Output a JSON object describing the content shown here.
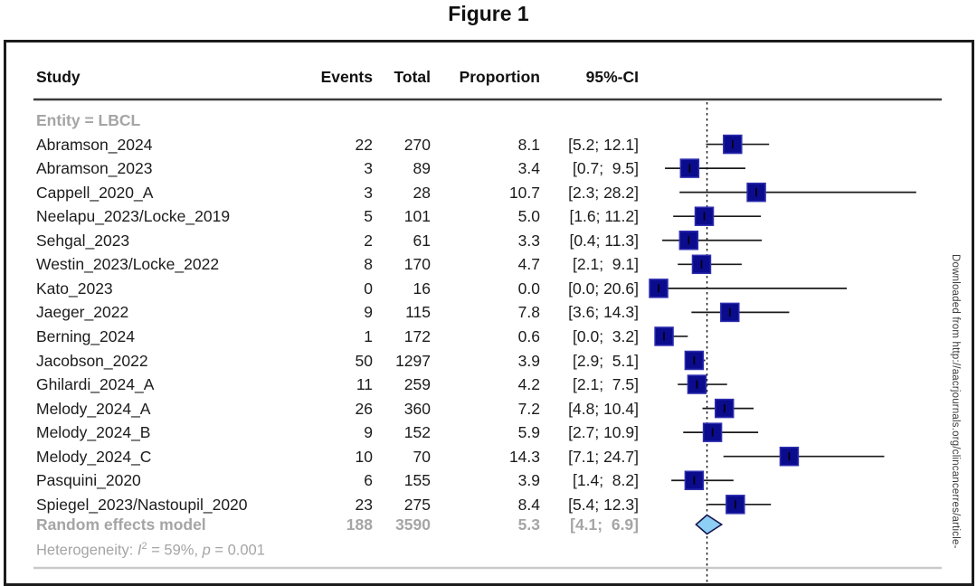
{
  "figure": {
    "label": "Figure 1"
  },
  "watermark": "Downloaded from http://aacrjournals.org/clincancerres/article-",
  "table": {
    "columns": [
      "Study",
      "Events",
      "Total",
      "Proportion",
      "95%-CI"
    ]
  },
  "chart_data": {
    "type": "forest",
    "subgroup_label": "Entity = LBCL",
    "x_reference_line": 5.3,
    "axis": {
      "x_min": 0,
      "x_max": 30,
      "unit": "percent",
      "axis_hidden": true
    },
    "colors": {
      "square_fill": "#0b0b8d",
      "square_stroke": "#2e2eb0",
      "ci_line": "#1a1a1a",
      "reference_line": "#111111",
      "diamond_fill": "#8cceF4",
      "diamond_stroke": "#16164f",
      "subgroup_text": "#a5a5a5",
      "separator_gray": "#c9c9c9"
    },
    "studies": [
      {
        "name": "Abramson_2024",
        "events": 22,
        "total": 270,
        "proportion": 8.1,
        "proportion_label": "8.1",
        "ci_lo": 5.2,
        "ci_hi": 12.1,
        "ci_label": "[5.2; 12.1]"
      },
      {
        "name": "Abramson_2023",
        "events": 3,
        "total": 89,
        "proportion": 3.4,
        "proportion_label": "3.4",
        "ci_lo": 0.7,
        "ci_hi": 9.5,
        "ci_label": "[0.7;  9.5]"
      },
      {
        "name": "Cappell_2020_A",
        "events": 3,
        "total": 28,
        "proportion": 10.7,
        "proportion_label": "10.7",
        "ci_lo": 2.3,
        "ci_hi": 28.2,
        "ci_label": "[2.3; 28.2]"
      },
      {
        "name": "Neelapu_2023/Locke_2019",
        "events": 5,
        "total": 101,
        "proportion": 5.0,
        "proportion_label": "5.0",
        "ci_lo": 1.6,
        "ci_hi": 11.2,
        "ci_label": "[1.6; 11.2]"
      },
      {
        "name": "Sehgal_2023",
        "events": 2,
        "total": 61,
        "proportion": 3.3,
        "proportion_label": "3.3",
        "ci_lo": 0.4,
        "ci_hi": 11.3,
        "ci_label": "[0.4; 11.3]"
      },
      {
        "name": "Westin_2023/Locke_2022",
        "events": 8,
        "total": 170,
        "proportion": 4.7,
        "proportion_label": "4.7",
        "ci_lo": 2.1,
        "ci_hi": 9.1,
        "ci_label": "[2.1;  9.1]"
      },
      {
        "name": "Kato_2023",
        "events": 0,
        "total": 16,
        "proportion": 0.0,
        "proportion_label": "0.0",
        "ci_lo": 0.0,
        "ci_hi": 20.6,
        "ci_label": "[0.0; 20.6]"
      },
      {
        "name": "Jaeger_2022",
        "events": 9,
        "total": 115,
        "proportion": 7.8,
        "proportion_label": "7.8",
        "ci_lo": 3.6,
        "ci_hi": 14.3,
        "ci_label": "[3.6; 14.3]"
      },
      {
        "name": "Berning_2024",
        "events": 1,
        "total": 172,
        "proportion": 0.6,
        "proportion_label": "0.6",
        "ci_lo": 0.0,
        "ci_hi": 3.2,
        "ci_label": "[0.0;  3.2]"
      },
      {
        "name": "Jacobson_2022",
        "events": 50,
        "total": 1297,
        "proportion": 3.9,
        "proportion_label": "3.9",
        "ci_lo": 2.9,
        "ci_hi": 5.1,
        "ci_label": "[2.9;  5.1]"
      },
      {
        "name": "Ghilardi_2024_A",
        "events": 11,
        "total": 259,
        "proportion": 4.2,
        "proportion_label": "4.2",
        "ci_lo": 2.1,
        "ci_hi": 7.5,
        "ci_label": "[2.1;  7.5]"
      },
      {
        "name": "Melody_2024_A",
        "events": 26,
        "total": 360,
        "proportion": 7.2,
        "proportion_label": "7.2",
        "ci_lo": 4.8,
        "ci_hi": 10.4,
        "ci_label": "[4.8; 10.4]"
      },
      {
        "name": "Melody_2024_B",
        "events": 9,
        "total": 152,
        "proportion": 5.9,
        "proportion_label": "5.9",
        "ci_lo": 2.7,
        "ci_hi": 10.9,
        "ci_label": "[2.7; 10.9]"
      },
      {
        "name": "Melody_2024_C",
        "events": 10,
        "total": 70,
        "proportion": 14.3,
        "proportion_label": "14.3",
        "ci_lo": 7.1,
        "ci_hi": 24.7,
        "ci_label": "[7.1; 24.7]"
      },
      {
        "name": "Pasquini_2020",
        "events": 6,
        "total": 155,
        "proportion": 3.9,
        "proportion_label": "3.9",
        "ci_lo": 1.4,
        "ci_hi": 8.2,
        "ci_label": "[1.4;  8.2]"
      },
      {
        "name": "Spiegel_2023/Nastoupil_2020",
        "events": 23,
        "total": 275,
        "proportion": 8.4,
        "proportion_label": "8.4",
        "ci_lo": 5.4,
        "ci_hi": 12.3,
        "ci_label": "[5.4; 12.3]"
      }
    ],
    "summary": {
      "name": "Random effects model",
      "events": 188,
      "total": 3590,
      "proportion": 5.3,
      "proportion_label": "5.3",
      "ci_lo": 4.1,
      "ci_hi": 6.9,
      "ci_label": "[4.1;  6.9]"
    },
    "heterogeneity": {
      "prefix": "Heterogeneity: ",
      "stat": "I",
      "sup": "2",
      "mid": " = 59%, ",
      "p": "p",
      "tail": " = 0.001"
    }
  }
}
